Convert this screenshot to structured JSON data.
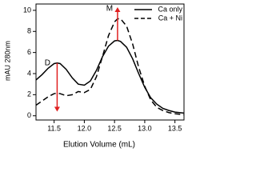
{
  "chart_data": {
    "type": "line",
    "x_label": "Elution Volume (mL)",
    "y_label": "mAU 280nm",
    "x": [
      11.2,
      11.3,
      11.4,
      11.5,
      11.55,
      11.6,
      11.7,
      11.8,
      11.9,
      12.0,
      12.1,
      12.2,
      12.3,
      12.4,
      12.5,
      12.55,
      12.6,
      12.7,
      12.8,
      12.9,
      13.0,
      13.1,
      13.2,
      13.3,
      13.4,
      13.5,
      13.65
    ],
    "series": [
      {
        "name": "Ca only",
        "color": "#000000",
        "dash": false,
        "values": [
          3.4,
          3.9,
          4.5,
          4.95,
          5.0,
          4.95,
          4.4,
          3.6,
          3.0,
          2.9,
          3.3,
          4.3,
          5.6,
          6.6,
          7.1,
          7.15,
          7.05,
          6.5,
          5.4,
          4.0,
          2.7,
          1.7,
          1.1,
          0.7,
          0.5,
          0.35,
          0.25
        ]
      },
      {
        "name": "Ca + Ni",
        "color": "#000000",
        "dash": true,
        "values": [
          1.0,
          1.4,
          1.8,
          2.1,
          2.15,
          2.1,
          1.9,
          2.0,
          2.3,
          2.2,
          2.5,
          3.7,
          5.6,
          7.6,
          8.9,
          9.2,
          9.2,
          8.5,
          6.8,
          4.6,
          2.8,
          1.5,
          0.8,
          0.5,
          0.3,
          0.2,
          0.1
        ]
      }
    ],
    "annotations": [
      {
        "text": "D",
        "x": 11.55,
        "from": 5.0,
        "to": 0.4,
        "color": "#e02020"
      },
      {
        "text": "M",
        "x": 12.55,
        "from": 7.15,
        "to": 10.3,
        "color": "#e02020"
      }
    ],
    "xlim": [
      11.2,
      13.65
    ],
    "xticks": [
      11.5,
      {
        "value": 12.0,
        "label": "12.0"
      },
      12.5,
      {
        "value": 13.0,
        "label": "13.0"
      },
      13.5
    ],
    "ylim": [
      -0.4,
      10.6
    ],
    "yticks": [
      0,
      2,
      4,
      6,
      8,
      10
    ],
    "legend": "top-right"
  }
}
